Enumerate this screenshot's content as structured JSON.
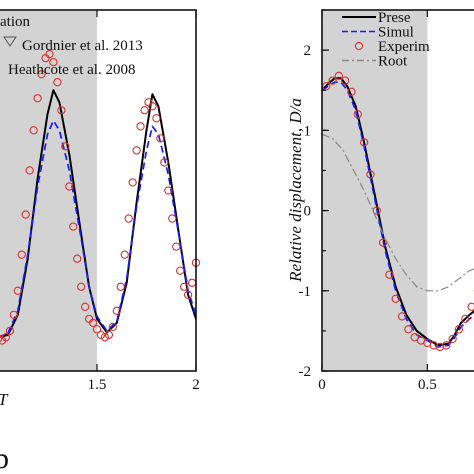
{
  "figure": {
    "panel_label": "b"
  },
  "chart_data": [
    {
      "type": "line",
      "x_range": [
        1,
        2
      ],
      "y_range": [
        -2,
        2.5
      ],
      "xticks": [
        1.5,
        2
      ],
      "xtick_labels": [
        "1.5",
        "2"
      ],
      "shaded_x": [
        1.0,
        1.5
      ],
      "legend": {
        "placement": "top-left",
        "entries": [
          "ation",
          "Gordnier et al. 2013",
          "Heathcote et al. 2008"
        ]
      },
      "series": [
        {
          "name": "",
          "style": "solid",
          "color": "#000000",
          "x": [
            1.0,
            1.05,
            1.1,
            1.15,
            1.2,
            1.25,
            1.28,
            1.31,
            1.36,
            1.42,
            1.46,
            1.5,
            1.55,
            1.6,
            1.65,
            1.7,
            1.75,
            1.78,
            1.81,
            1.86,
            1.92,
            1.96,
            2.0
          ],
          "y": [
            -1.58,
            -1.55,
            -1.3,
            -0.6,
            0.4,
            1.2,
            1.5,
            1.35,
            0.7,
            -0.3,
            -0.95,
            -1.35,
            -1.52,
            -1.4,
            -0.9,
            0.1,
            1.0,
            1.45,
            1.3,
            0.6,
            -0.4,
            -1.05,
            -1.35
          ]
        },
        {
          "name": "Gordnier et al. 2013",
          "style": "dashed",
          "color": "#1a1aff",
          "x": [
            1.0,
            1.05,
            1.1,
            1.15,
            1.2,
            1.25,
            1.28,
            1.31,
            1.36,
            1.42,
            1.46,
            1.5,
            1.55,
            1.6,
            1.65,
            1.7,
            1.75,
            1.78,
            1.81,
            1.86,
            1.92,
            1.96,
            2.0
          ],
          "y": [
            -1.58,
            -1.53,
            -1.25,
            -0.55,
            0.3,
            0.95,
            1.12,
            1.0,
            0.5,
            -0.35,
            -0.95,
            -1.32,
            -1.5,
            -1.38,
            -0.85,
            0.05,
            0.75,
            1.05,
            0.95,
            0.45,
            -0.4,
            -1.0,
            -1.3
          ]
        },
        {
          "name": "Heathcote et al. 2008",
          "style": "markers",
          "color": "#d93030",
          "x": [
            1.0,
            1.02,
            1.04,
            1.06,
            1.08,
            1.1,
            1.12,
            1.14,
            1.16,
            1.18,
            1.2,
            1.22,
            1.24,
            1.26,
            1.28,
            1.3,
            1.32,
            1.34,
            1.36,
            1.38,
            1.4,
            1.42,
            1.44,
            1.46,
            1.48,
            1.5,
            1.52,
            1.54,
            1.56,
            1.58,
            1.6,
            1.62,
            1.64,
            1.66,
            1.68,
            1.7,
            1.72,
            1.74,
            1.76,
            1.78,
            1.8,
            1.82,
            1.84,
            1.86,
            1.88,
            1.9,
            1.92,
            1.94,
            1.96,
            1.98,
            2.0
          ],
          "y": [
            -1.6,
            -1.62,
            -1.58,
            -1.5,
            -1.3,
            -1.0,
            -0.55,
            -0.05,
            0.5,
            1.0,
            1.4,
            1.7,
            1.9,
            1.95,
            1.85,
            1.6,
            1.25,
            0.8,
            0.3,
            -0.2,
            -0.6,
            -0.95,
            -1.2,
            -1.35,
            -1.4,
            -1.48,
            -1.55,
            -1.58,
            -1.55,
            -1.45,
            -1.25,
            -0.95,
            -0.55,
            -0.1,
            0.35,
            0.75,
            1.05,
            1.25,
            1.35,
            1.3,
            1.15,
            0.9,
            0.6,
            0.25,
            -0.1,
            -0.45,
            -0.75,
            -0.95,
            -1.05,
            -0.9,
            -0.65
          ]
        }
      ]
    },
    {
      "type": "line",
      "x_range": [
        0,
        0.75
      ],
      "y_range": [
        -2,
        2.5
      ],
      "xticks": [
        0,
        0.5
      ],
      "xtick_labels": [
        "0",
        "0.5"
      ],
      "yticks": [
        -2,
        -1,
        0,
        1,
        2
      ],
      "ytick_labels": [
        "-2",
        "-1",
        "0",
        "1",
        "2"
      ],
      "ylabel": "Relative displacement, D/a",
      "shaded_x": [
        0,
        0.5
      ],
      "legend": {
        "placement": "top-right",
        "entries": [
          "Prese",
          "Simul",
          "Experim",
          "Root"
        ]
      },
      "series": [
        {
          "name": "Prese",
          "style": "solid",
          "color": "#000000",
          "x": [
            0.0,
            0.03,
            0.06,
            0.09,
            0.12,
            0.16,
            0.2,
            0.25,
            0.3,
            0.35,
            0.4,
            0.45,
            0.5,
            0.55,
            0.6,
            0.63,
            0.66,
            0.7,
            0.75
          ],
          "y": [
            1.5,
            1.58,
            1.65,
            1.65,
            1.55,
            1.3,
            0.85,
            0.2,
            -0.45,
            -0.95,
            -1.3,
            -1.5,
            -1.6,
            -1.68,
            -1.66,
            -1.55,
            -1.4,
            -1.3,
            -1.2
          ]
        },
        {
          "name": "Simul",
          "style": "dashed",
          "color": "#1a1aff",
          "x": [
            0.0,
            0.03,
            0.06,
            0.09,
            0.12,
            0.16,
            0.2,
            0.25,
            0.3,
            0.35,
            0.4,
            0.45,
            0.5,
            0.55,
            0.6,
            0.63,
            0.66,
            0.7,
            0.75
          ],
          "y": [
            1.5,
            1.55,
            1.6,
            1.6,
            1.5,
            1.25,
            0.8,
            0.15,
            -0.5,
            -1.0,
            -1.35,
            -1.55,
            -1.62,
            -1.7,
            -1.68,
            -1.58,
            -1.45,
            -1.35,
            -1.25
          ]
        },
        {
          "name": "Experim",
          "style": "markers",
          "color": "#d93030",
          "x": [
            0.02,
            0.05,
            0.08,
            0.11,
            0.14,
            0.17,
            0.2,
            0.23,
            0.26,
            0.29,
            0.32,
            0.35,
            0.38,
            0.41,
            0.44,
            0.47,
            0.5,
            0.53,
            0.56,
            0.59,
            0.62,
            0.65,
            0.68,
            0.71,
            0.74
          ],
          "y": [
            1.55,
            1.62,
            1.68,
            1.62,
            1.48,
            1.2,
            0.85,
            0.45,
            0.0,
            -0.4,
            -0.8,
            -1.1,
            -1.32,
            -1.48,
            -1.58,
            -1.62,
            -1.65,
            -1.68,
            -1.7,
            -1.68,
            -1.6,
            -1.48,
            -1.35,
            -1.2,
            -1.0
          ]
        },
        {
          "name": "Root",
          "style": "dashdot",
          "color": "#888888",
          "x": [
            0.0,
            0.05,
            0.1,
            0.15,
            0.2,
            0.25,
            0.3,
            0.35,
            0.4,
            0.45,
            0.5,
            0.55,
            0.6,
            0.65,
            0.7,
            0.75
          ],
          "y": [
            0.95,
            0.9,
            0.75,
            0.5,
            0.25,
            -0.05,
            -0.35,
            -0.6,
            -0.8,
            -0.95,
            -1.0,
            -1.0,
            -0.95,
            -0.85,
            -0.75,
            -0.7
          ]
        }
      ]
    }
  ]
}
